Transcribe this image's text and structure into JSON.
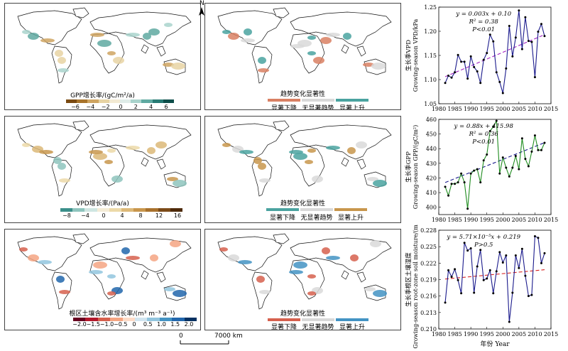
{
  "maps": {
    "gpp_trend": {
      "caption": "GPP增长率/(gC/m²/a)",
      "ticks": [
        "−6",
        "−4",
        "−2",
        "0",
        "2",
        "4",
        "6"
      ],
      "colors": [
        "#7a4a12",
        "#a8742c",
        "#cfa562",
        "#e7d3a3",
        "#f3ead3",
        "#dfece8",
        "#a9d3cc",
        "#5fa9a1",
        "#277a73",
        "#0e4e4a"
      ]
    },
    "gpp_sig": {
      "caption": "趋势变化显著性",
      "labels": [
        "显著下降",
        "无显著趋势",
        "显著上升"
      ],
      "colors": [
        "#d98063",
        "#d9d9d9",
        "#4aa3a0"
      ]
    },
    "vpd_trend": {
      "caption": "VPD增长率/(Pa/a)",
      "ticks": [
        "−8",
        "−4",
        "0",
        "4",
        "8",
        "12",
        "16"
      ],
      "colors": [
        "#3a8f8a",
        "#8ec4bd",
        "#cfe6e2",
        "#f4ecd6",
        "#ecd9a8",
        "#dcb878",
        "#c8964c",
        "#a8712c",
        "#7b4a18",
        "#4e2a0a"
      ]
    },
    "vpd_sig": {
      "caption": "趋势变化显著性",
      "labels": [
        "显著下降",
        "无显著趋势",
        "显著上升"
      ],
      "colors": [
        "#4aa3a0",
        "#d9d9d9",
        "#c8964c"
      ]
    },
    "sm_trend": {
      "caption": "根区土壤含水率增长率/(m³ m⁻³ a⁻¹)",
      "ticks": [
        "−2.0",
        "−1.5",
        "−1.0",
        "−0.5",
        "0",
        "0.5",
        "1.0",
        "1.5",
        "2.0"
      ],
      "colors": [
        "#67001f",
        "#b2182b",
        "#d6604d",
        "#f4a582",
        "#fddbc7",
        "#d1e5f0",
        "#92c5de",
        "#4393c3",
        "#2166ac",
        "#053061"
      ]
    },
    "sm_sig": {
      "caption": "趋势变化显著性",
      "labels": [
        "显著下降",
        "无显著趋势",
        "显著上升"
      ],
      "colors": [
        "#d6604d",
        "#d9d9d9",
        "#4393c3"
      ]
    },
    "north_label": "N",
    "scale": {
      "zero": "0",
      "distance": "7000 km"
    }
  },
  "charts": {
    "xlabel": "年份 Year",
    "xticks": [
      "1980",
      "1985",
      "1990",
      "1995",
      "2000",
      "2005",
      "2010",
      "2015"
    ]
  },
  "chart_data": [
    {
      "type": "line",
      "ylabel_cn": "生长季VPD",
      "ylabel_en": "Growing-season VPD/kPa",
      "equation": "y = 0.003x + 0.10",
      "r2": "R² = 0.38",
      "p": "P<0.01",
      "color": "#1a1a8c",
      "trend_color": "#a020c0",
      "xlim": [
        1980,
        2015
      ],
      "ylim": [
        1.05,
        1.25
      ],
      "yticks": [
        "1.05",
        "1.10",
        "1.15",
        "1.20",
        "1.25"
      ],
      "x": [
        1982,
        1983,
        1984,
        1985,
        1986,
        1987,
        1988,
        1989,
        1990,
        1991,
        1992,
        1993,
        1994,
        1995,
        1996,
        1997,
        1998,
        1999,
        2000,
        2001,
        2002,
        2003,
        2004,
        2005,
        2006,
        2007,
        2008,
        2009,
        2010,
        2011,
        2012,
        2013
      ],
      "values": [
        1.093,
        1.108,
        1.104,
        1.115,
        1.151,
        1.137,
        1.137,
        1.102,
        1.148,
        1.126,
        1.117,
        1.093,
        1.141,
        1.155,
        1.193,
        1.179,
        1.115,
        1.095,
        1.072,
        1.123,
        1.211,
        1.148,
        1.187,
        1.243,
        1.163,
        1.229,
        1.18,
        1.178,
        1.105,
        1.199,
        1.215,
        1.19
      ],
      "trend": [
        [
          1982,
          1.106
        ],
        [
          2013,
          1.193
        ]
      ]
    },
    {
      "type": "line",
      "ylabel_cn": "生长季GPP",
      "ylabel_en": "Growing-season GPP/(gC/m²)",
      "equation": "y = 0.88x + 415.98",
      "r2": "R² = 0.36",
      "p": "P<0.01",
      "color": "#1f8c1f",
      "trend_color": "#1a1a8c",
      "xlim": [
        1980,
        2015
      ],
      "ylim": [
        395,
        460
      ],
      "yticks": [
        "400",
        "410",
        "420",
        "430",
        "440",
        "450",
        "460"
      ],
      "x": [
        1982,
        1983,
        1984,
        1985,
        1986,
        1987,
        1988,
        1989,
        1990,
        1991,
        1992,
        1993,
        1994,
        1995,
        1996,
        1997,
        1998,
        1999,
        2000,
        2001,
        2002,
        2003,
        2004,
        2005,
        2006,
        2007,
        2008,
        2009,
        2010,
        2011,
        2012,
        2013
      ],
      "values": [
        414,
        408,
        416,
        416,
        417,
        423,
        417,
        399,
        423,
        425,
        426,
        417,
        432,
        436,
        452,
        455,
        459,
        423,
        434,
        427,
        421,
        427,
        435,
        426,
        447,
        433,
        428,
        438,
        449,
        439,
        439,
        444
      ],
      "trend": [
        [
          1982,
          416.9
        ],
        [
          2013,
          444.1
        ]
      ]
    },
    {
      "type": "line",
      "ylabel_cn": "生长季根区土壤湿度",
      "ylabel_en": "Growing-season root-zone soil moisture/(m³/m³)",
      "equation": "y = 5.71×10⁻⁵x + 0.219",
      "p": "P>0.5",
      "color": "#1a1a8c",
      "trend_color": "#d62020",
      "xlim": [
        1980,
        2015
      ],
      "ylim": [
        0.21,
        0.228
      ],
      "yticks": [
        "0.210",
        "0.213",
        "0.216",
        "0.219",
        "0.222",
        "0.225",
        "0.228"
      ],
      "x": [
        1982,
        1983,
        1984,
        1985,
        1986,
        1987,
        1988,
        1989,
        1990,
        1991,
        1992,
        1993,
        1994,
        1995,
        1996,
        1997,
        1998,
        1999,
        2000,
        2001,
        2002,
        2003,
        2004,
        2005,
        2006,
        2007,
        2008,
        2009,
        2010,
        2011,
        2012,
        2013
      ],
      "values": [
        0.2148,
        0.2207,
        0.2195,
        0.2209,
        0.2189,
        0.2165,
        0.2257,
        0.2243,
        0.2247,
        0.2166,
        0.2214,
        0.2244,
        0.2189,
        0.2192,
        0.2207,
        0.2165,
        0.2205,
        0.224,
        0.2221,
        0.2234,
        0.2113,
        0.2166,
        0.2234,
        0.2211,
        0.2246,
        0.2197,
        0.216,
        0.2162,
        0.2269,
        0.2266,
        0.222,
        0.2238
      ],
      "trend": [
        [
          1982,
          0.2191
        ],
        [
          2013,
          0.2208
        ]
      ]
    }
  ]
}
